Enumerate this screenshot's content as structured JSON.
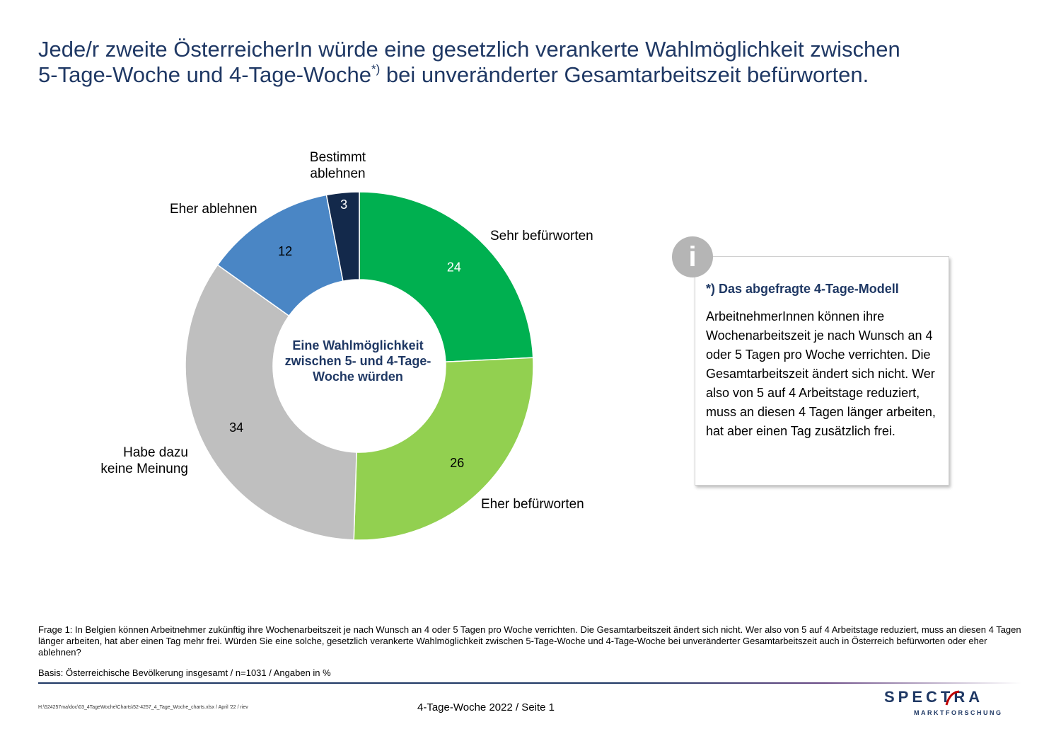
{
  "title": {
    "line1": "Jede/r zweite ÖsterreicherIn würde eine gesetzlich verankerte Wahlmöglichkeit zwischen",
    "line2_prefix": "5-Tage-Woche und 4-Tage-Woche",
    "line2_sup": "*)",
    "line2_suffix": " bei unveränderter Gesamtarbeitszeit befürworten."
  },
  "chart_data": {
    "type": "donut",
    "center_label": "Eine Wahlmöglichkeit zwischen 5- und 4-Tage-Woche würden",
    "unit": "%",
    "slices": [
      {
        "name": "Sehr befürworten",
        "value": 24,
        "color": "#00b050",
        "value_label_color": "#ffffff"
      },
      {
        "name": "Eher befürworten",
        "value": 26,
        "color": "#92d050",
        "value_label_color": "#000000"
      },
      {
        "name": "Habe dazu keine Meinung",
        "value": 34,
        "color": "#bfbfbf",
        "value_label_color": "#000000"
      },
      {
        "name": "Eher ablehnen",
        "value": 12,
        "color": "#4a86c5",
        "value_label_color": "#000000"
      },
      {
        "name": "Bestimmt ablehnen",
        "value": 3,
        "color": "#13294b",
        "value_label_color": "#ffffff"
      }
    ],
    "slice_labels": {
      "sehr": "Sehr befürworten",
      "eher": "Eher befürworten",
      "meinung_1": "Habe dazu",
      "meinung_2": "keine Meinung",
      "eher_ablehnen": "Eher ablehnen",
      "bestimmt_1": "Bestimmt",
      "bestimmt_2": "ablehnen"
    }
  },
  "info_box": {
    "icon": "info-icon",
    "title": "*) Das abgefragte 4-Tage-Modell",
    "text": "ArbeitnehmerInnen können ihre Wochenarbeitszeit je nach Wunsch an 4 oder 5 Tagen pro Woche verrichten. Die Gesamtarbeitszeit ändert sich nicht. Wer also von 5 auf 4 Arbeitstage reduziert, muss an diesen 4 Tagen länger arbeiten, hat aber einen Tag zusätzlich frei."
  },
  "footnotes": {
    "question": "Frage 1: In Belgien können Arbeitnehmer zukünftig ihre Wochenarbeitszeit je nach Wunsch an 4 oder 5 Tagen pro Woche verrichten. Die Gesamtarbeitszeit ändert sich nicht. Wer also von 5 auf 4 Arbeitstage reduziert, muss an diesen 4 Tagen länger arbeiten, hat aber einen Tag mehr frei. Würden Sie eine solche, gesetzlich verankerte Wahlmöglichkeit zwischen 5-Tage-Woche und 4-Tage-Woche bei unveränderter Gesamtarbeitszeit auch in Österreich befürworten oder eher ablehnen?",
    "basis": "Basis: Österreichische Bevölkerung insgesamt / n=1031 / Angaben in %"
  },
  "footer": {
    "filepath": "H:\\524257ma\\doc\\03_4TageWoche\\Charts\\52-4257_4_Tage_Woche_charts.xlsx / April '22 / riev",
    "page": "4-Tage-Woche 2022  /  Seite  1",
    "logo_main": "SPECTRA",
    "logo_sub": "MARKTFORSCHUNG",
    "brand_color": "#1f3864",
    "accent_color": "#c00000"
  }
}
